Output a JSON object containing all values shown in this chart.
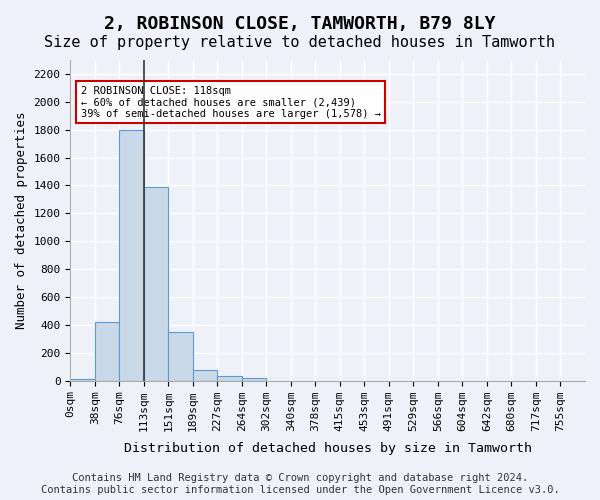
{
  "title": "2, ROBINSON CLOSE, TAMWORTH, B79 8LY",
  "subtitle": "Size of property relative to detached houses in Tamworth",
  "xlabel": "Distribution of detached houses by size in Tamworth",
  "ylabel": "Number of detached properties",
  "bin_labels": [
    "0sqm",
    "38sqm",
    "76sqm",
    "113sqm",
    "151sqm",
    "189sqm",
    "227sqm",
    "264sqm",
    "302sqm",
    "340sqm",
    "378sqm",
    "415sqm",
    "453sqm",
    "491sqm",
    "529sqm",
    "566sqm",
    "604sqm",
    "642sqm",
    "680sqm",
    "717sqm",
    "755sqm"
  ],
  "bar_values": [
    15,
    420,
    1800,
    1390,
    350,
    80,
    30,
    18,
    0,
    0,
    0,
    0,
    0,
    0,
    0,
    0,
    0,
    0,
    0,
    0,
    0
  ],
  "bar_color": "#c9d9e8",
  "bar_edge_color": "#5b9bd5",
  "property_line_x": 3,
  "annotation_text": "2 ROBINSON CLOSE: 118sqm\n← 60% of detached houses are smaller (2,439)\n39% of semi-detached houses are larger (1,578) →",
  "annotation_box_color": "#ffffff",
  "annotation_box_edge": "#cc0000",
  "ylim": [
    0,
    2300
  ],
  "yticks": [
    0,
    200,
    400,
    600,
    800,
    1000,
    1200,
    1400,
    1600,
    1800,
    2000,
    2200
  ],
  "footer_line1": "Contains HM Land Registry data © Crown copyright and database right 2024.",
  "footer_line2": "Contains public sector information licensed under the Open Government Licence v3.0.",
  "bg_color": "#eef2f8",
  "plot_bg_color": "#eef2f8",
  "grid_color": "#ffffff",
  "title_fontsize": 13,
  "subtitle_fontsize": 11,
  "axis_label_fontsize": 9,
  "tick_fontsize": 8,
  "footer_fontsize": 7.5
}
